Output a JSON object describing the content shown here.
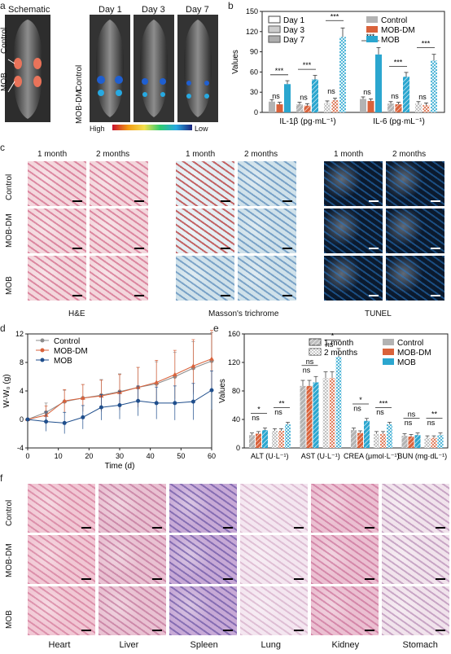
{
  "panels": {
    "a": {
      "label": "a",
      "columns": [
        "Schematic",
        "Day 1",
        "Day 3",
        "Day 7"
      ],
      "left_labels": [
        "Control",
        "MOB"
      ],
      "middle_labels": [
        "Control",
        "MOB-DM"
      ],
      "colorbar_high": "High",
      "colorbar_low": "Low"
    },
    "b": {
      "label": "b"
    },
    "c": {
      "label": "c",
      "headers": [
        "1 month",
        "2 months"
      ],
      "row_labels": [
        "Control",
        "MOB-DM",
        "MOB"
      ],
      "captions": [
        "H&E",
        "Masson's trichrome",
        "TUNEL"
      ]
    },
    "d": {
      "label": "d"
    },
    "e": {
      "label": "e"
    },
    "f": {
      "label": "f",
      "row_labels": [
        "Control",
        "MOB-DM",
        "MOB"
      ],
      "organs": [
        "Heart",
        "Liver",
        "Spleen",
        "Lung",
        "Kidney",
        "Stomach"
      ]
    }
  },
  "chart_data": [
    {
      "id": "b",
      "type": "bar",
      "ylabel": "Values",
      "ylim": [
        0,
        150
      ],
      "yticks": [
        0,
        30,
        60,
        90,
        120,
        150
      ],
      "groups": [
        "IL-1β (pg·mL⁻¹)",
        "IL-6 (pg·mL⁻¹)"
      ],
      "legend_time": [
        "Day 1",
        "Day 3",
        "Day 7"
      ],
      "legend_group": [
        "Control",
        "MOB-DM",
        "MOB"
      ],
      "colors": {
        "Control": "#b3b3b3",
        "MOB-DM": "#d9623b",
        "MOB": "#2ba6cf"
      },
      "data": {
        "IL-1β (pg·mL⁻¹)": {
          "Day 1": {
            "Control": 16,
            "MOB-DM": 12,
            "MOB": 42
          },
          "Day 3": {
            "Control": 12,
            "MOB-DM": 10,
            "MOB": 49
          },
          "Day 7": {
            "Control": 14,
            "MOB-DM": 18,
            "MOB": 112
          }
        },
        "IL-6 (pg·mL⁻¹)": {
          "Day 1": {
            "Control": 20,
            "MOB-DM": 17,
            "MOB": 86
          },
          "Day 3": {
            "Control": 13,
            "MOB-DM": 12,
            "MOB": 53
          },
          "Day 7": {
            "Control": 13,
            "MOB-DM": 11,
            "MOB": 77
          }
        }
      },
      "significance": {
        "IL-1β (pg·mL⁻¹)": [
          [
            "ns",
            "***"
          ],
          [
            "ns",
            "***"
          ],
          [
            "ns",
            "***"
          ]
        ],
        "IL-6 (pg·mL⁻¹)": [
          [
            "ns",
            "***"
          ],
          [
            "ns",
            "***"
          ],
          [
            "ns",
            "***"
          ]
        ]
      }
    },
    {
      "id": "d",
      "type": "line",
      "xlabel": "Time (d)",
      "ylabel": "W-W₀ (g)",
      "xlim": [
        0,
        60
      ],
      "ylim": [
        -4,
        12
      ],
      "xticks": [
        0,
        10,
        20,
        30,
        40,
        50,
        60
      ],
      "yticks": [
        -4,
        0,
        4,
        8,
        12
      ],
      "x": [
        0,
        6,
        12,
        18,
        24,
        30,
        36,
        42,
        48,
        54,
        60
      ],
      "series": [
        {
          "name": "Control",
          "color": "#8c8c8c",
          "values": [
            0,
            1.0,
            2.5,
            3.0,
            3.4,
            3.9,
            4.5,
            5.0,
            6.0,
            7.2,
            8.2
          ]
        },
        {
          "name": "MOB-DM",
          "color": "#d9623b",
          "values": [
            0,
            0.6,
            2.6,
            3.0,
            3.3,
            3.8,
            4.5,
            5.2,
            6.3,
            7.5,
            8.5
          ]
        },
        {
          "name": "MOB",
          "color": "#1f4e8c",
          "values": [
            0,
            -0.3,
            -0.5,
            0.3,
            1.7,
            2.0,
            2.6,
            2.3,
            2.3,
            2.5,
            4.1
          ]
        }
      ]
    },
    {
      "id": "e",
      "type": "bar",
      "ylabel": "Values",
      "ylim": [
        0,
        160
      ],
      "yticks": [
        0,
        40,
        80,
        120,
        160
      ],
      "groups": [
        "ALT (U·L⁻¹)",
        "AST (U·L⁻¹)",
        "CREA (μmol·L⁻¹)",
        "BUN (mg·dL⁻¹)"
      ],
      "legend_time": [
        "1 month",
        "2 months"
      ],
      "legend_group": [
        "Control",
        "MOB-DM",
        "MOB"
      ],
      "data": {
        "ALT (U·L⁻¹)": {
          "1 month": {
            "Control": 18,
            "MOB-DM": 20,
            "MOB": 25
          },
          "2 months": {
            "Control": 24,
            "MOB-DM": 24,
            "MOB": 33
          }
        },
        "AST (U·L⁻¹)": {
          "1 month": {
            "Control": 87,
            "MOB-DM": 87,
            "MOB": 92
          },
          "2 months": {
            "Control": 98,
            "MOB-DM": 98,
            "MOB": 128
          }
        },
        "CREA (μmol·L⁻¹)": {
          "1 month": {
            "Control": 25,
            "MOB-DM": 21,
            "MOB": 38
          },
          "2 months": {
            "Control": 20,
            "MOB-DM": 20,
            "MOB": 33
          }
        },
        "BUN (mg·dL⁻¹)": {
          "1 month": {
            "Control": 17,
            "MOB-DM": 16,
            "MOB": 18
          },
          "2 months": {
            "Control": 14,
            "MOB-DM": 14,
            "MOB": 18
          }
        }
      },
      "significance": {
        "ALT (U·L⁻¹)": [
          [
            "ns",
            "*"
          ],
          [
            "ns",
            "**"
          ]
        ],
        "AST (U·L⁻¹)": [
          [
            "ns",
            "ns"
          ],
          [
            "ns",
            "*"
          ]
        ],
        "CREA (μmol·L⁻¹)": [
          [
            "ns",
            "*"
          ],
          [
            "ns",
            "***"
          ]
        ],
        "BUN (mg·dL⁻¹)": [
          [
            "ns",
            "ns"
          ],
          [
            "ns",
            "**"
          ]
        ]
      }
    }
  ]
}
